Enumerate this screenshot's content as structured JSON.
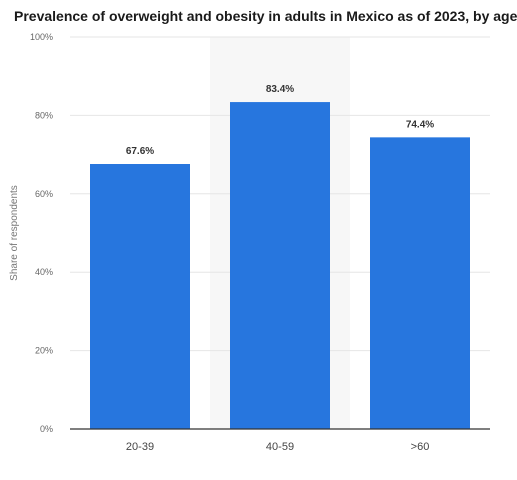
{
  "chart_data": {
    "type": "bar",
    "title": "Prevalence of overweight and obesity in adults in Mexico as of 2023, by age",
    "xlabel": "",
    "ylabel": "Share of respondents",
    "categories": [
      "20-39",
      "40-59",
      ">60"
    ],
    "values": [
      67.6,
      83.4,
      74.4
    ],
    "value_labels": [
      "67.6%",
      "83.4%",
      "74.4%"
    ],
    "ylim": [
      0,
      100
    ],
    "y_ticks": [
      0,
      20,
      40,
      60,
      80,
      100
    ],
    "y_tick_labels": [
      "0%",
      "20%",
      "40%",
      "60%",
      "80%",
      "100%"
    ],
    "grid": true,
    "highlighted_category": "40-59",
    "colors": {
      "bar": "#2776de",
      "highlight_band": "#f7f7f7",
      "grid": "#e6e6e6",
      "axis": "#333333"
    }
  }
}
